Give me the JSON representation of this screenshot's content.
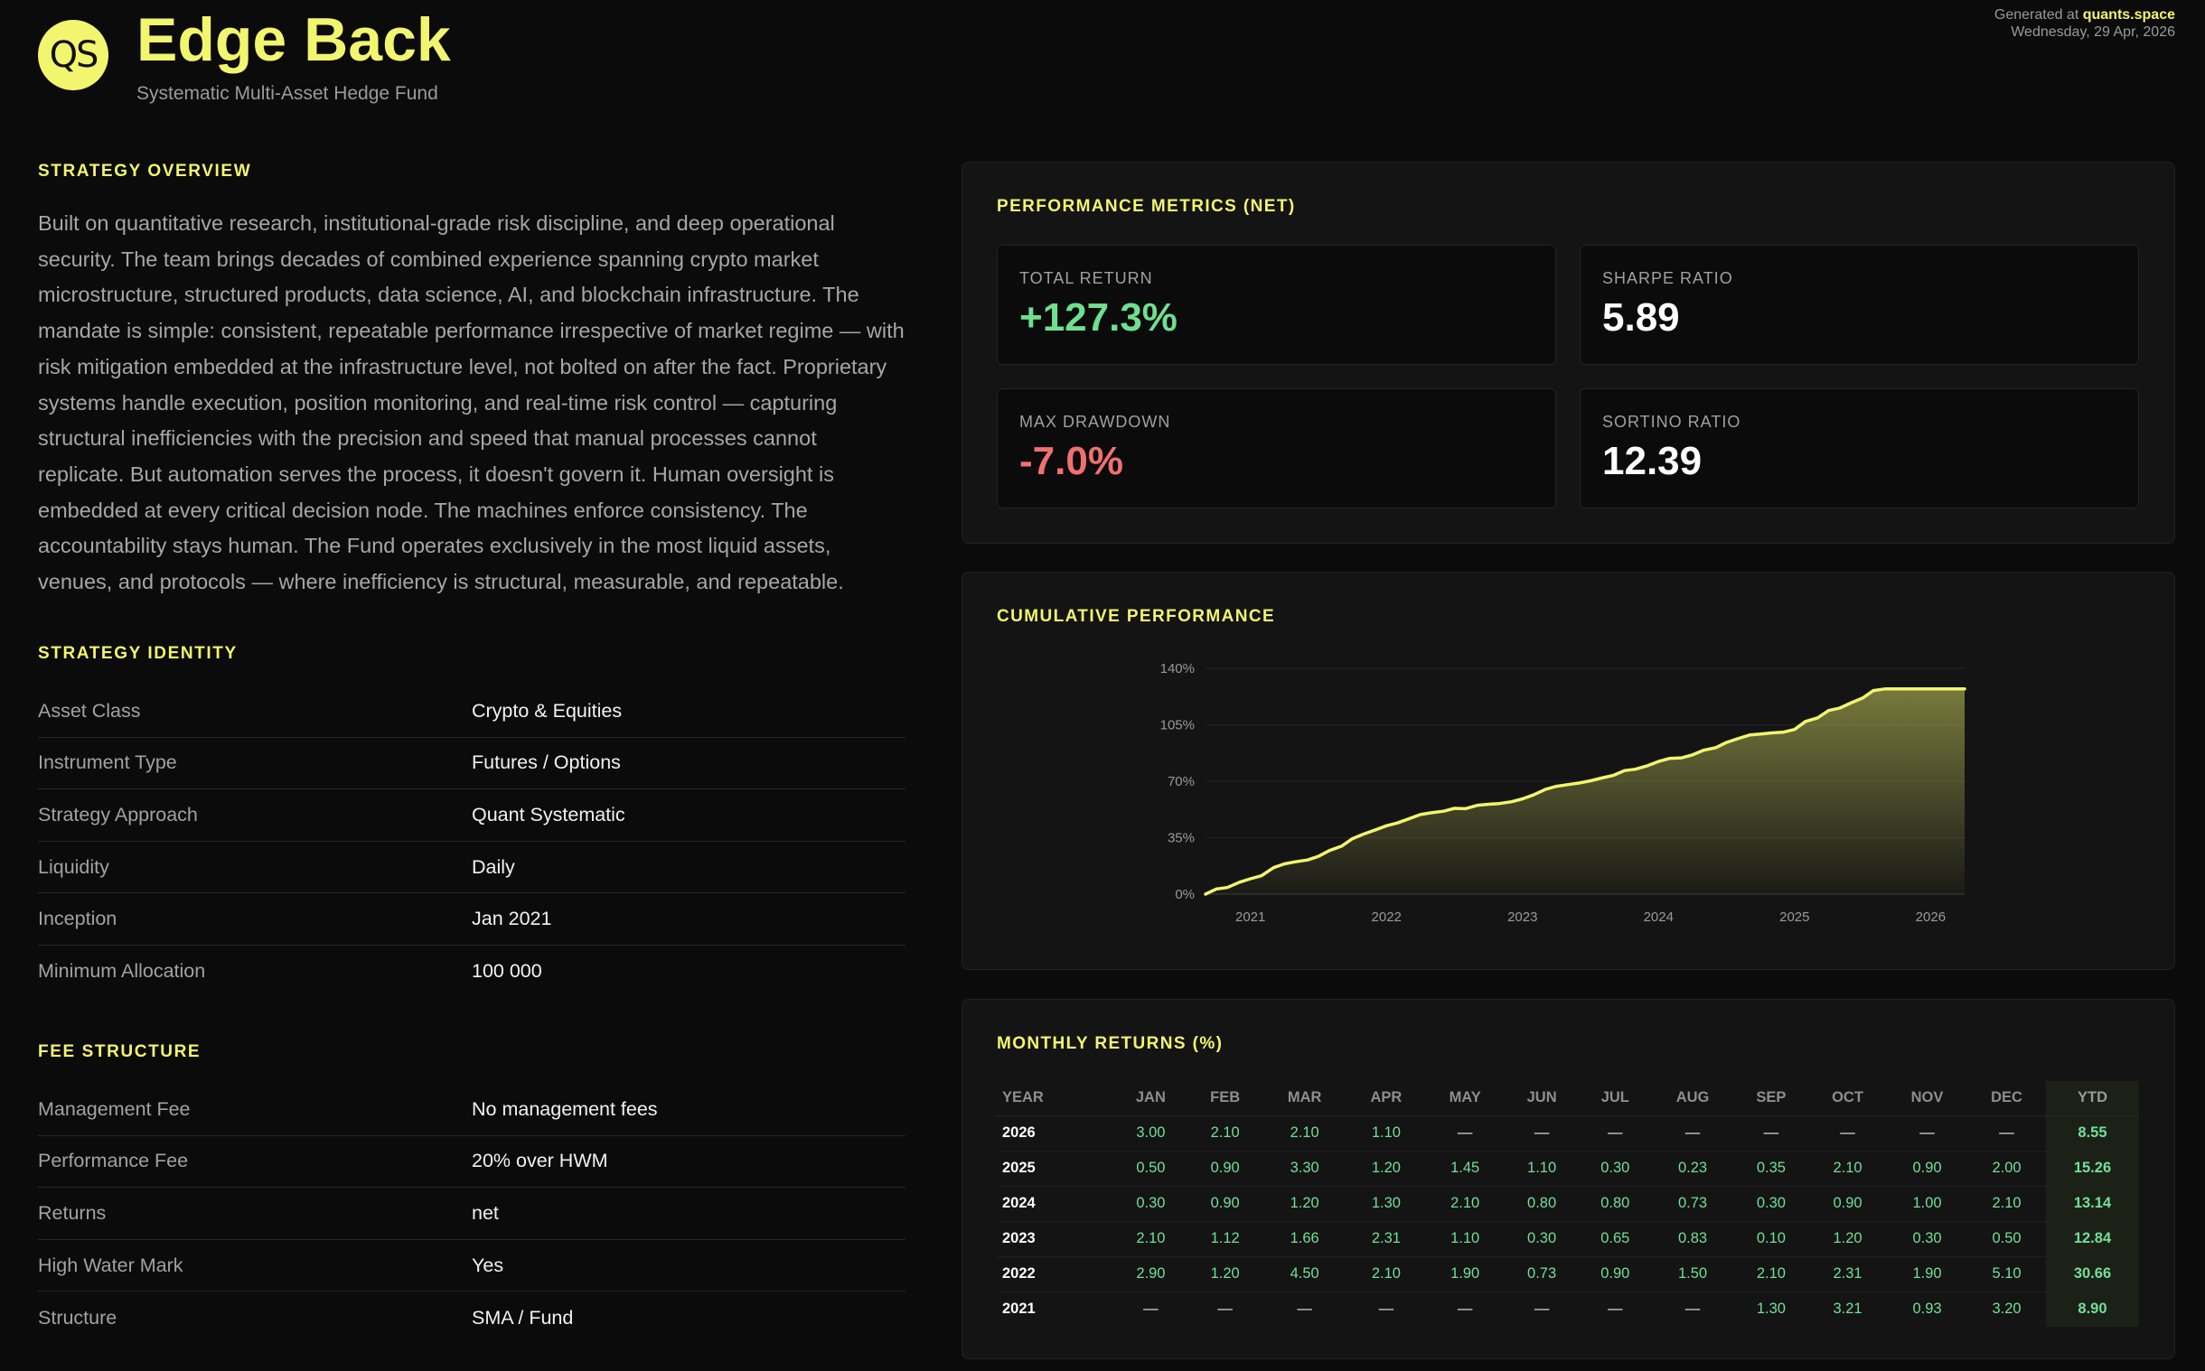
{
  "header": {
    "logo_text": "QS",
    "title": "Edge Back",
    "subtitle": "Systematic Multi-Asset Hedge Fund",
    "generated_prefix": "Generated at",
    "generated_site": "quants.space",
    "generated_date": "Wednesday, 29 Apr, 2026"
  },
  "overview": {
    "title": "STRATEGY OVERVIEW",
    "text": "Built on quantitative research, institutional-grade risk discipline, and deep operational security. The team brings decades of combined experience spanning crypto market microstructure, structured products, data science, AI, and blockchain infrastructure. The mandate is simple: consistent, repeatable performance irrespective of market regime — with risk mitigation embedded at the infrastructure level, not bolted on after the fact. Proprietary systems handle execution, position monitoring, and real-time risk control — capturing structural inefficiencies with the precision and speed that manual processes cannot replicate. But automation serves the process, it doesn't govern it. Human oversight is embedded at every critical decision node. The machines enforce consistency. The accountability stays human. The Fund operates exclusively in the most liquid assets, venues, and protocols — where inefficiency is structural, measurable, and repeatable."
  },
  "identity": {
    "title": "STRATEGY IDENTITY",
    "rows": [
      {
        "k": "Asset Class",
        "v": "Crypto & Equities"
      },
      {
        "k": "Instrument Type",
        "v": "Futures / Options"
      },
      {
        "k": "Strategy Approach",
        "v": "Quant Systematic"
      },
      {
        "k": "Liquidity",
        "v": "Daily"
      },
      {
        "k": "Inception",
        "v": "Jan 2021"
      },
      {
        "k": "Minimum Allocation",
        "v": "100 000"
      }
    ]
  },
  "fees": {
    "title": "FEE STRUCTURE",
    "rows": [
      {
        "k": "Management Fee",
        "v": "No management fees"
      },
      {
        "k": "Performance Fee",
        "v": "20% over HWM"
      },
      {
        "k": "Returns",
        "v": "net"
      },
      {
        "k": "High Water Mark",
        "v": "Yes"
      },
      {
        "k": "Structure",
        "v": "SMA / Fund"
      }
    ]
  },
  "metrics": {
    "title": "PERFORMANCE METRICS (NET)",
    "items": [
      {
        "label": "TOTAL RETURN",
        "value": "+127.3%",
        "tone": "pos"
      },
      {
        "label": "SHARPE RATIO",
        "value": "5.89",
        "tone": ""
      },
      {
        "label": "MAX DRAWDOWN",
        "value": "-7.0%",
        "tone": "neg"
      },
      {
        "label": "SORTINO RATIO",
        "value": "12.39",
        "tone": ""
      }
    ],
    "colors": {
      "positive": "#6ee08f",
      "negative": "#f07070",
      "accent": "#f2f56e"
    }
  },
  "chart_title": "CUMULATIVE PERFORMANCE",
  "chart_data": {
    "type": "area",
    "y_ticks": [
      "0%",
      "35%",
      "70%",
      "105%",
      "140%"
    ],
    "x_ticks": [
      {
        "label": "2021",
        "t": 2021.0
      },
      {
        "label": "2022",
        "t": 2022.0
      },
      {
        "label": "2023",
        "t": 2023.0
      },
      {
        "label": "2024",
        "t": 2024.0
      },
      {
        "label": "2025",
        "t": 2025.0
      },
      {
        "label": "2026",
        "t": 2026.0
      }
    ],
    "xlim": [
      2020.67,
      2026.25
    ],
    "ylim": [
      0,
      140
    ],
    "grid": true,
    "color": "#f2f56e",
    "series": [
      {
        "x": [
          2020.67,
          2020.75,
          2020.83,
          2020.92,
          2021.0,
          2021.08,
          2021.17,
          2021.25,
          2021.33,
          2021.42,
          2021.5,
          2021.58,
          2021.67,
          2021.75,
          2021.83,
          2021.92,
          2022.0,
          2022.08,
          2022.17,
          2022.25,
          2022.33,
          2022.42,
          2022.5,
          2022.58,
          2022.67,
          2022.75,
          2022.83,
          2022.92,
          2023.0,
          2023.08,
          2023.17,
          2023.25,
          2023.33,
          2023.42,
          2023.5,
          2023.58,
          2023.67,
          2023.75,
          2023.83,
          2023.92,
          2024.0,
          2024.08,
          2024.17,
          2024.25,
          2024.33,
          2024.42,
          2024.5,
          2024.58,
          2024.67,
          2024.75,
          2024.83,
          2024.92,
          2025.0,
          2025.08,
          2025.17,
          2025.25,
          2025.33,
          2025.42,
          2025.5,
          2025.58,
          2025.67,
          2025.75,
          2025.83,
          2025.92,
          2026.0,
          2026.08,
          2026.17,
          2026.25
        ],
        "y": [
          0.0,
          3.21,
          4.1,
          7.39,
          9.53,
          11.36,
          16.4,
          18.77,
          20.03,
          21.17,
          23.39,
          27.02,
          29.76,
          34.4,
          37.16,
          39.89,
          42.41,
          44.13,
          46.88,
          49.35,
          50.46,
          51.42,
          53.2,
          52.96,
          55.1,
          55.74,
          56.18,
          57.3,
          59.1,
          61.48,
          65.01,
          66.87,
          67.86,
          68.95,
          70.3,
          71.98,
          73.7,
          76.62,
          77.46,
          79.65,
          82.27,
          84.12,
          84.52,
          86.37,
          89.2,
          90.8,
          94.06,
          96.31,
          98.68,
          99.28,
          99.97,
          100.46,
          102.1,
          107.1,
          109.3,
          113.84,
          115.3,
          118.8,
          121.6,
          126.25,
          127.3,
          127.3,
          127.3,
          127.3,
          127.3,
          127.3,
          127.3,
          127.3
        ]
      }
    ]
  },
  "monthly": {
    "title": "MONTHLY RETURNS (%)",
    "headers": [
      "YEAR",
      "JAN",
      "FEB",
      "MAR",
      "APR",
      "MAY",
      "JUN",
      "JUL",
      "AUG",
      "SEP",
      "OCT",
      "NOV",
      "DEC",
      "YTD"
    ],
    "rows": [
      [
        "2026",
        "3.00",
        "2.10",
        "2.10",
        "1.10",
        "—",
        "—",
        "—",
        "—",
        "—",
        "—",
        "—",
        "—",
        "8.55"
      ],
      [
        "2025",
        "0.50",
        "0.90",
        "3.30",
        "1.20",
        "1.45",
        "1.10",
        "0.30",
        "0.23",
        "0.35",
        "2.10",
        "0.90",
        "2.00",
        "15.26"
      ],
      [
        "2024",
        "0.30",
        "0.90",
        "1.20",
        "1.30",
        "2.10",
        "0.80",
        "0.80",
        "0.73",
        "0.30",
        "0.90",
        "1.00",
        "2.10",
        "13.14"
      ],
      [
        "2023",
        "2.10",
        "1.12",
        "1.66",
        "2.31",
        "1.10",
        "0.30",
        "0.65",
        "0.83",
        "0.10",
        "1.20",
        "0.30",
        "0.50",
        "12.84"
      ],
      [
        "2022",
        "2.90",
        "1.20",
        "4.50",
        "2.10",
        "1.90",
        "0.73",
        "0.90",
        "1.50",
        "2.10",
        "2.31",
        "1.90",
        "5.10",
        "30.66"
      ],
      [
        "2021",
        "—",
        "—",
        "—",
        "—",
        "—",
        "—",
        "—",
        "—",
        "1.30",
        "3.21",
        "0.93",
        "3.20",
        "8.90"
      ]
    ]
  }
}
